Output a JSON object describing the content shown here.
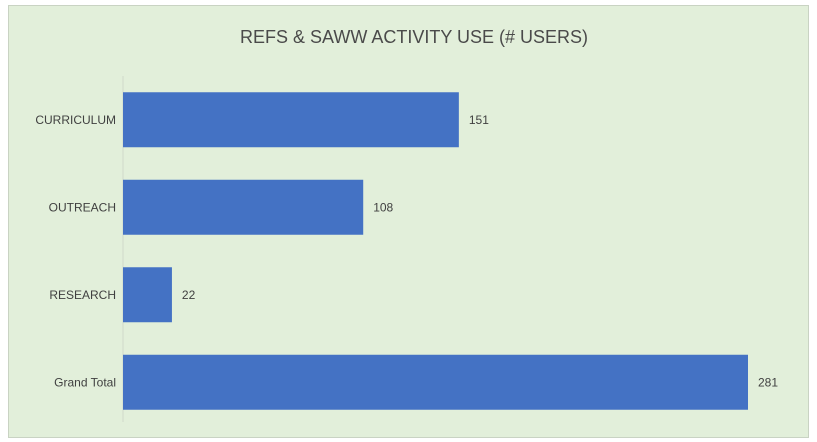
{
  "chart_data": {
    "type": "bar",
    "orientation": "horizontal",
    "title": "REFS & SAWW  ACTIVITY USE (# USERS)",
    "categories": [
      "CURRICULUM",
      "OUTREACH",
      "RESEARCH",
      "Grand Total"
    ],
    "values": [
      151,
      108,
      22,
      281
    ],
    "data_labels": [
      "151",
      "108",
      "22",
      "281"
    ],
    "xlim": [
      0,
      281
    ],
    "grid": false,
    "legend": "none",
    "bar_color": "#4472c4",
    "background_color": "#e2efda"
  }
}
